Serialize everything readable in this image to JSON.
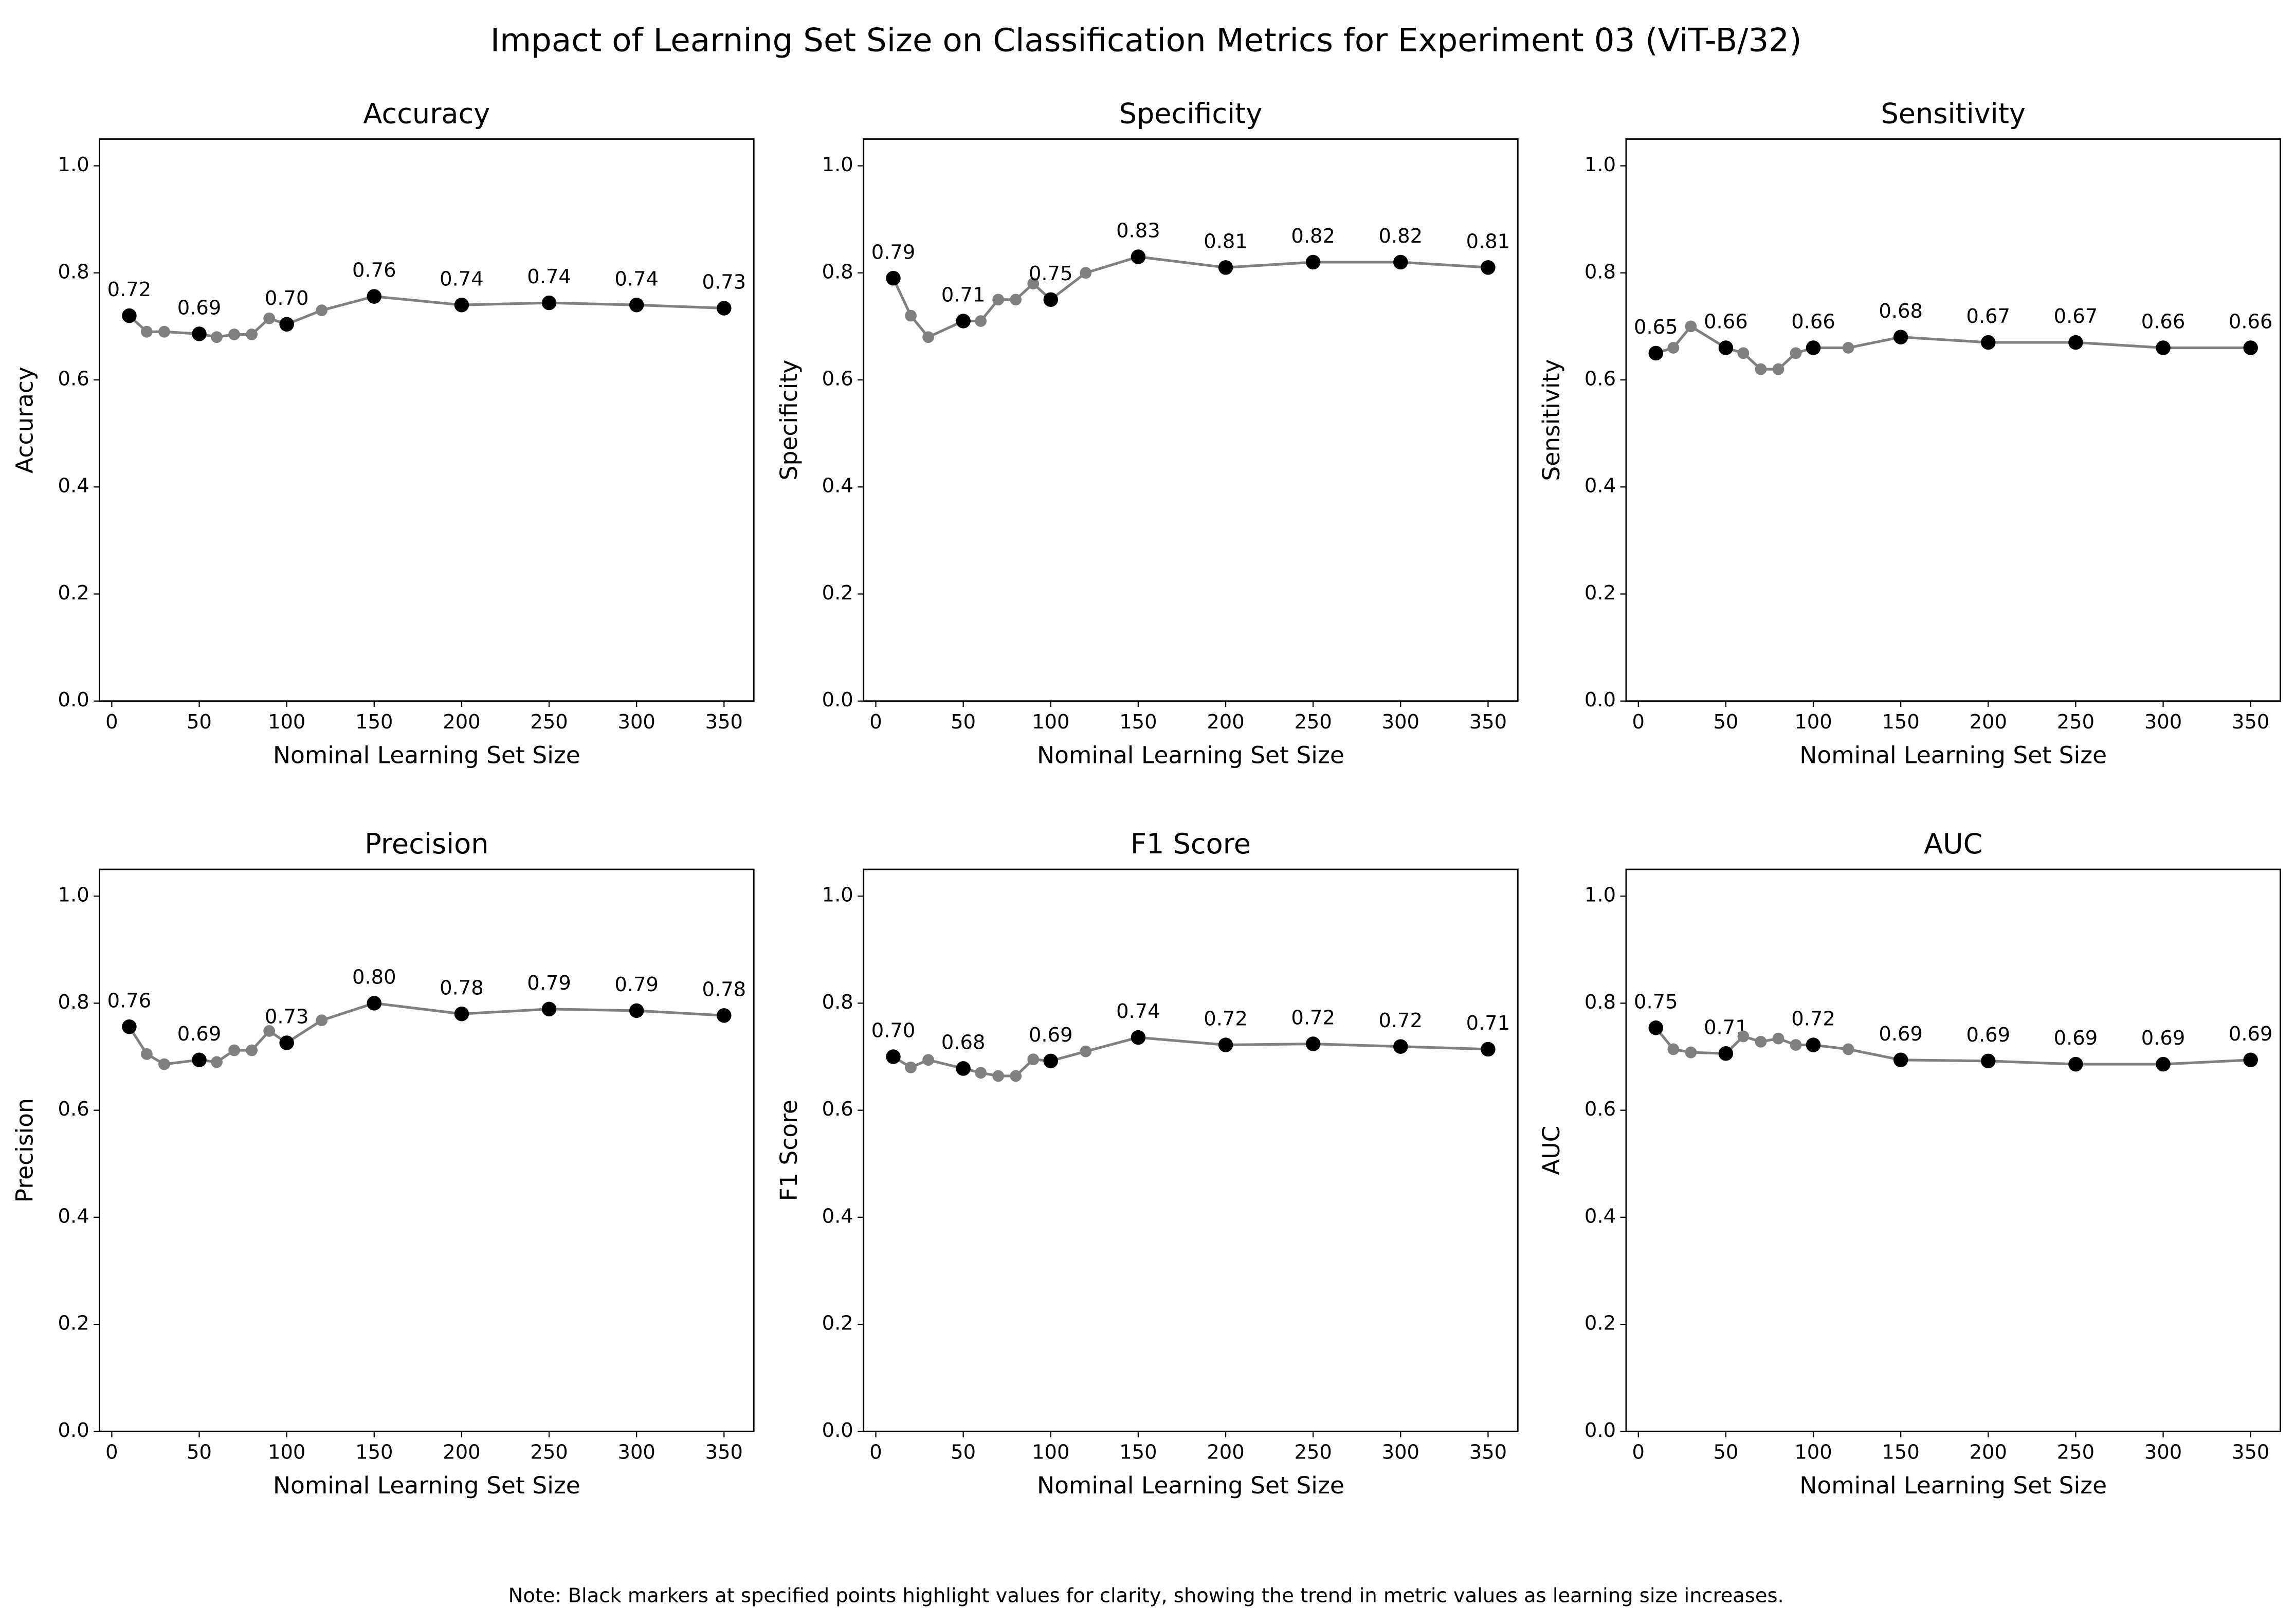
{
  "title": "Impact of Learning Set Size on Classification Metrics for Experiment 03 (ViT-B/32)",
  "note": "Note: Black markers at specified points highlight values for clarity, showing the trend in metric values as learning size increases.",
  "chart_data": [
    {
      "type": "line",
      "title": "Accuracy",
      "xlabel": "Nominal Learning Set Size",
      "ylabel": "Accuracy",
      "x": [
        10,
        20,
        30,
        50,
        60,
        70,
        80,
        90,
        100,
        120,
        150,
        200,
        250,
        300,
        350
      ],
      "values": [
        0.72,
        0.69,
        0.69,
        0.686,
        0.68,
        0.685,
        0.685,
        0.715,
        0.704,
        0.73,
        0.756,
        0.74,
        0.744,
        0.74,
        0.734
      ],
      "value_labels": [
        "0.72",
        null,
        null,
        "0.69",
        null,
        null,
        null,
        null,
        "0.70",
        null,
        "0.76",
        "0.74",
        "0.74",
        "0.74",
        "0.73"
      ],
      "color": "gray",
      "highlight_color": "black",
      "xlim": [
        -7,
        367
      ],
      "ylim": [
        0,
        1.05
      ],
      "xticks": [
        0,
        50,
        100,
        150,
        200,
        250,
        300,
        350
      ],
      "yticks": [
        {
          "value": 0,
          "label": "0.0"
        },
        0.2,
        0.4,
        0.6,
        0.8,
        {
          "value": 1,
          "label": "1.0"
        }
      ]
    },
    {
      "type": "line",
      "title": "Specificity",
      "xlabel": "Nominal Learning Set Size",
      "ylabel": "Specificity",
      "x": [
        10,
        20,
        30,
        50,
        60,
        70,
        80,
        90,
        100,
        120,
        150,
        200,
        250,
        300,
        350
      ],
      "values": [
        0.79,
        0.72,
        0.68,
        0.71,
        0.71,
        0.75,
        0.75,
        0.78,
        0.75,
        0.8,
        0.83,
        0.81,
        0.82,
        0.82,
        0.81
      ],
      "value_labels": [
        "0.79",
        null,
        null,
        "0.71",
        null,
        null,
        null,
        null,
        "0.75",
        null,
        "0.83",
        "0.81",
        "0.82",
        "0.82",
        "0.81"
      ],
      "color": "gray",
      "highlight_color": "black",
      "xlim": [
        -7,
        367
      ],
      "ylim": [
        0,
        1.05
      ],
      "xticks": [
        0,
        50,
        100,
        150,
        200,
        250,
        300,
        350
      ],
      "yticks": [
        {
          "value": 0,
          "label": "0.0"
        },
        0.2,
        0.4,
        0.6,
        0.8,
        {
          "value": 1,
          "label": "1.0"
        }
      ]
    },
    {
      "type": "line",
      "title": "Sensitivity",
      "xlabel": "Nominal Learning Set Size",
      "ylabel": "Sensitivity",
      "x": [
        10,
        20,
        30,
        50,
        60,
        70,
        80,
        90,
        100,
        120,
        150,
        200,
        250,
        300,
        350
      ],
      "values": [
        0.65,
        0.66,
        0.7,
        0.66,
        0.65,
        0.62,
        0.62,
        0.65,
        0.66,
        0.66,
        0.68,
        0.67,
        0.67,
        0.66,
        0.66
      ],
      "value_labels": [
        "0.65",
        null,
        null,
        "0.66",
        null,
        null,
        null,
        null,
        "0.66",
        null,
        "0.68",
        "0.67",
        "0.67",
        "0.66",
        "0.66"
      ],
      "color": "gray",
      "highlight_color": "black",
      "xlim": [
        -7,
        367
      ],
      "ylim": [
        0,
        1.05
      ],
      "xticks": [
        0,
        50,
        100,
        150,
        200,
        250,
        300,
        350
      ],
      "yticks": [
        {
          "value": 0,
          "label": "0.0"
        },
        0.2,
        0.4,
        0.6,
        0.8,
        {
          "value": 1,
          "label": "1.0"
        }
      ]
    },
    {
      "type": "line",
      "title": "Precision",
      "xlabel": "Nominal Learning Set Size",
      "ylabel": "Precision",
      "x": [
        10,
        20,
        30,
        50,
        60,
        70,
        80,
        90,
        100,
        120,
        150,
        200,
        250,
        300,
        350
      ],
      "values": [
        0.756,
        0.705,
        0.686,
        0.694,
        0.69,
        0.712,
        0.712,
        0.748,
        0.726,
        0.768,
        0.8,
        0.78,
        0.789,
        0.786,
        0.777
      ],
      "value_labels": [
        "0.76",
        null,
        null,
        "0.69",
        null,
        null,
        null,
        null,
        "0.73",
        null,
        "0.80",
        "0.78",
        "0.79",
        "0.79",
        "0.78"
      ],
      "color": "gray",
      "highlight_color": "black",
      "xlim": [
        -7,
        367
      ],
      "ylim": [
        0,
        1.05
      ],
      "xticks": [
        0,
        50,
        100,
        150,
        200,
        250,
        300,
        350
      ],
      "yticks": [
        {
          "value": 0,
          "label": "0.0"
        },
        0.2,
        0.4,
        0.6,
        0.8,
        {
          "value": 1,
          "label": "1.0"
        }
      ]
    },
    {
      "type": "line",
      "title": "F1 Score",
      "xlabel": "Nominal Learning Set Size",
      "ylabel": "F1 Score",
      "x": [
        10,
        20,
        30,
        50,
        60,
        70,
        80,
        90,
        100,
        120,
        150,
        200,
        250,
        300,
        350
      ],
      "values": [
        0.7,
        0.68,
        0.694,
        0.678,
        0.67,
        0.664,
        0.664,
        0.695,
        0.692,
        0.71,
        0.736,
        0.722,
        0.724,
        0.719,
        0.714
      ],
      "value_labels": [
        "0.70",
        null,
        null,
        "0.68",
        null,
        null,
        null,
        null,
        "0.69",
        null,
        "0.74",
        "0.72",
        "0.72",
        "0.72",
        "0.71"
      ],
      "color": "gray",
      "highlight_color": "black",
      "xlim": [
        -7,
        367
      ],
      "ylim": [
        0,
        1.05
      ],
      "xticks": [
        0,
        50,
        100,
        150,
        200,
        250,
        300,
        350
      ],
      "yticks": [
        {
          "value": 0,
          "label": "0.0"
        },
        0.2,
        0.4,
        0.6,
        0.8,
        {
          "value": 1,
          "label": "1.0"
        }
      ]
    },
    {
      "type": "line",
      "title": "AUC",
      "xlabel": "Nominal Learning Set Size",
      "ylabel": "AUC",
      "x": [
        10,
        20,
        30,
        50,
        60,
        70,
        80,
        90,
        100,
        120,
        150,
        200,
        250,
        300,
        350
      ],
      "values": [
        0.754,
        0.714,
        0.708,
        0.706,
        0.738,
        0.728,
        0.734,
        0.722,
        0.722,
        0.714,
        0.694,
        0.692,
        0.686,
        0.686,
        0.694
      ],
      "value_labels": [
        "0.75",
        null,
        null,
        "0.71",
        null,
        null,
        null,
        null,
        "0.72",
        null,
        "0.69",
        "0.69",
        "0.69",
        "0.69",
        "0.69"
      ],
      "color": "gray",
      "highlight_color": "black",
      "xlim": [
        -7,
        367
      ],
      "ylim": [
        0,
        1.05
      ],
      "xticks": [
        0,
        50,
        100,
        150,
        200,
        250,
        300,
        350
      ],
      "yticks": [
        {
          "value": 0,
          "label": "0.0"
        },
        0.2,
        0.4,
        0.6,
        0.8,
        {
          "value": 1,
          "label": "1.0"
        }
      ]
    }
  ]
}
